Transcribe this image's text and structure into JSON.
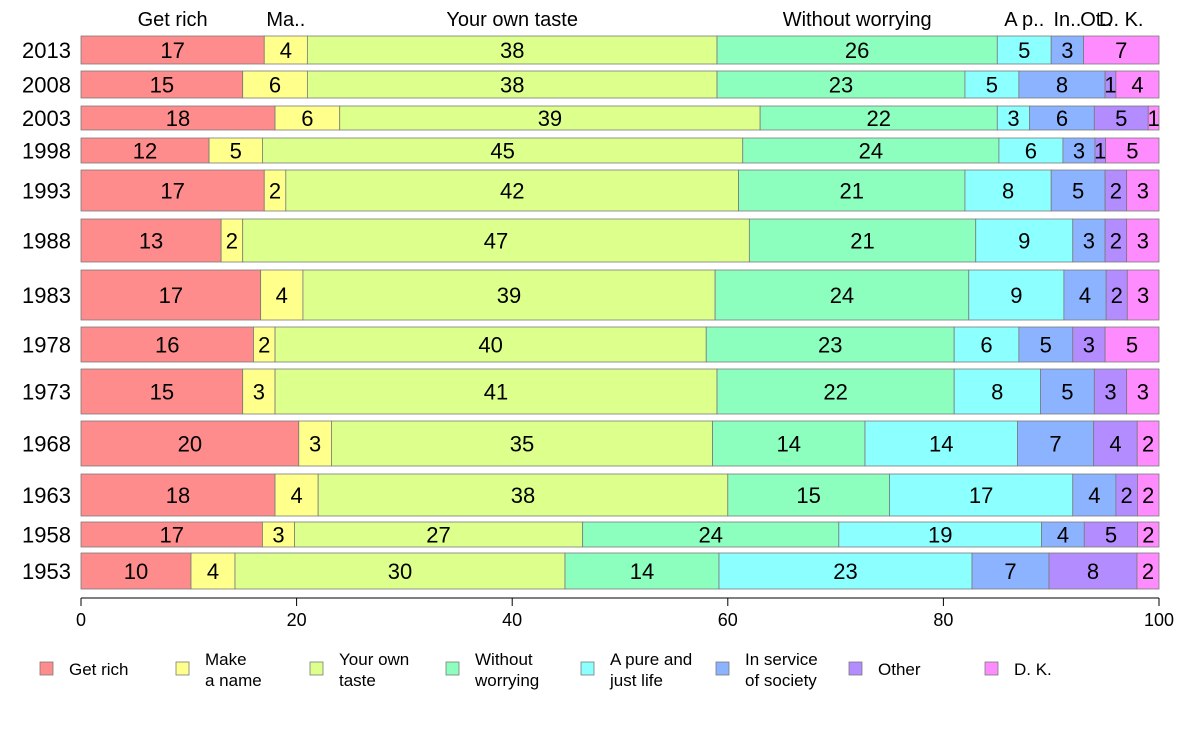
{
  "chart_data": {
    "type": "bar",
    "orientation": "horizontal",
    "stacked": true,
    "title": "",
    "xlabel": "",
    "ylabel": "",
    "xlim": [
      0,
      100
    ],
    "x_ticks": [
      "0",
      "20",
      "40",
      "60",
      "80",
      "100"
    ],
    "grid": false,
    "legend_position": "bottom",
    "categories": [
      "2013",
      "2008",
      "2003",
      "1998",
      "1993",
      "1988",
      "1983",
      "1978",
      "1973",
      "1968",
      "1963",
      "1958",
      "1953"
    ],
    "top_labels": [
      "Get rich",
      "Ma..",
      "Your own taste",
      "Without worrying",
      "A p..",
      "In..",
      "Ot..",
      "D. K."
    ],
    "series": [
      {
        "name": "Get rich",
        "legend": [
          "Get rich"
        ],
        "color": "#FF8C8C",
        "values": [
          17,
          15,
          18,
          12,
          17,
          13,
          17,
          16,
          15,
          20,
          18,
          17,
          10
        ]
      },
      {
        "name": "Make a name",
        "legend": [
          "Make",
          "a name"
        ],
        "color": "#FFFF8C",
        "values": [
          4,
          6,
          6,
          5,
          2,
          2,
          4,
          2,
          3,
          3,
          4,
          3,
          4
        ]
      },
      {
        "name": "Your own taste",
        "legend": [
          "Your own",
          "taste"
        ],
        "color": "#DDFF8C",
        "values": [
          38,
          38,
          39,
          45,
          42,
          47,
          39,
          40,
          41,
          35,
          38,
          27,
          30
        ]
      },
      {
        "name": "Without worrying",
        "legend": [
          "Without",
          "worrying"
        ],
        "color": "#8CFFBF",
        "values": [
          26,
          23,
          22,
          24,
          21,
          21,
          24,
          23,
          22,
          14,
          15,
          24,
          14
        ]
      },
      {
        "name": "A pure and just life",
        "legend": [
          "A pure and",
          "just life"
        ],
        "color": "#8CFFFF",
        "values": [
          5,
          5,
          3,
          6,
          8,
          9,
          9,
          6,
          8,
          14,
          17,
          19,
          23
        ]
      },
      {
        "name": "In service of society",
        "legend": [
          "In service",
          "of society"
        ],
        "color": "#8CB3FF",
        "values": [
          3,
          8,
          6,
          3,
          5,
          3,
          4,
          5,
          5,
          7,
          4,
          4,
          7
        ]
      },
      {
        "name": "Other",
        "legend": [
          "Other"
        ],
        "color": "#B38CFF",
        "values": [
          0,
          1,
          5,
          1,
          2,
          2,
          2,
          3,
          3,
          4,
          2,
          5,
          8
        ]
      },
      {
        "name": "D. K.",
        "legend": [
          "D. K."
        ],
        "color": "#FF8CFF",
        "values": [
          7,
          4,
          1,
          5,
          3,
          3,
          3,
          5,
          3,
          2,
          2,
          2,
          2
        ]
      }
    ]
  }
}
